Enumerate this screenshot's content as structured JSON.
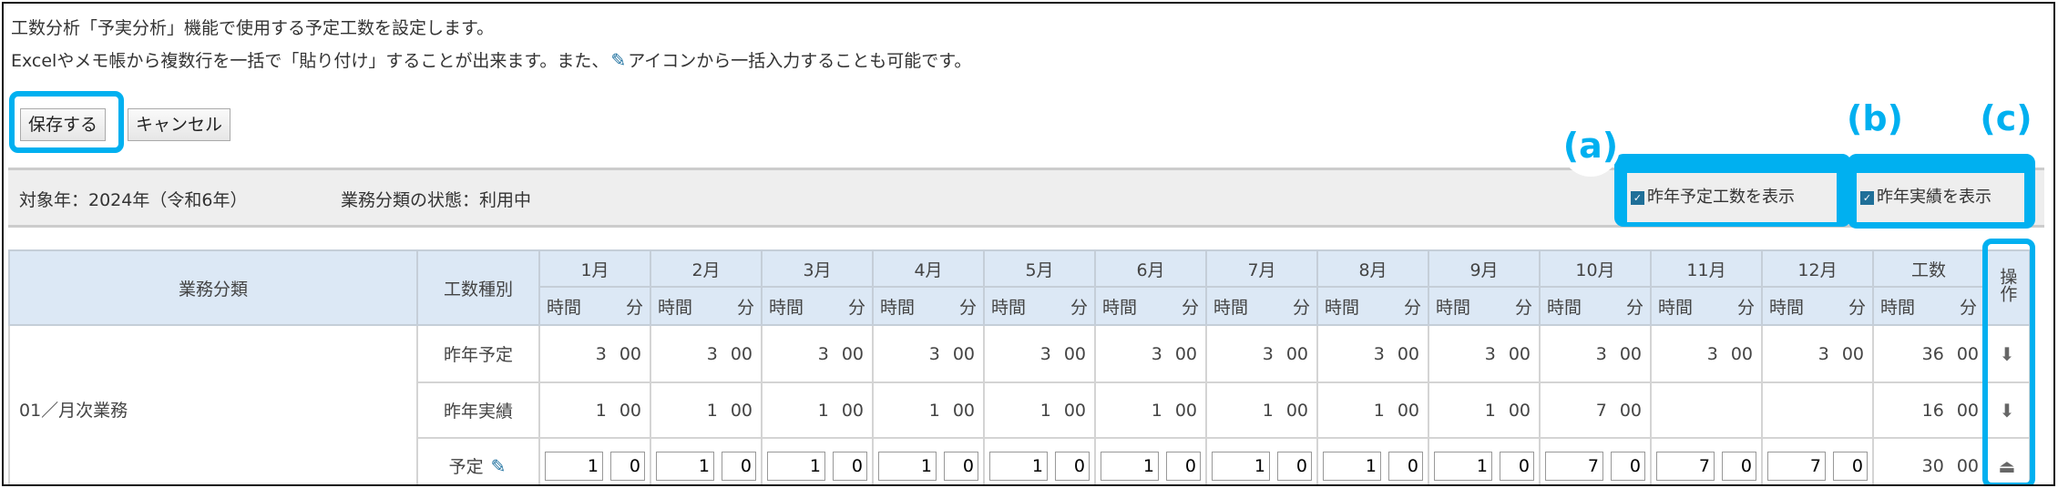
{
  "description": {
    "line1": "工数分析「予実分析」機能で使用する予定工数を設定します。",
    "line2a": "Excelやメモ帳から複数行を一括で「貼り付け」することが出来ます。また、",
    "line2b": "アイコンから一括入力することも可能です。"
  },
  "buttons": {
    "save": "保存する",
    "cancel": "キャンセル"
  },
  "info": {
    "year": "対象年：2024年（令和6年）",
    "status": "業務分類の状態：利用中"
  },
  "options": {
    "show_last_plan": {
      "label": "昨年予定工数を表示",
      "checked": true
    },
    "show_last_actual": {
      "label": "昨年実績を表示",
      "checked": true
    }
  },
  "annotations": {
    "a": "(a)",
    "b": "(b)",
    "c": "(c)"
  },
  "accent_color": "#00b0f0",
  "table": {
    "headers": {
      "category": "業務分類",
      "type": "工数種別",
      "total": "工数",
      "ops": "操作",
      "hour": "時間",
      "minute": "分"
    },
    "months": [
      "1月",
      "2月",
      "3月",
      "4月",
      "5月",
      "6月",
      "7月",
      "8月",
      "9月",
      "10月",
      "11月",
      "12月"
    ],
    "category": "01／月次業務",
    "rows": [
      {
        "type": "昨年予定",
        "kind": "display",
        "hours": [
          "3",
          "3",
          "3",
          "3",
          "3",
          "3",
          "3",
          "3",
          "3",
          "3",
          "3",
          "3"
        ],
        "minutes": [
          "00",
          "00",
          "00",
          "00",
          "00",
          "00",
          "00",
          "00",
          "00",
          "00",
          "00",
          "00"
        ],
        "total_h": "36",
        "total_m": "00",
        "op_icon": "circle-down-icon"
      },
      {
        "type": "昨年実績",
        "kind": "display",
        "hours": [
          "1",
          "1",
          "1",
          "1",
          "1",
          "1",
          "1",
          "1",
          "1",
          "7",
          "",
          ""
        ],
        "minutes": [
          "00",
          "00",
          "00",
          "00",
          "00",
          "00",
          "00",
          "00",
          "00",
          "00",
          "",
          ""
        ],
        "total_h": "16",
        "total_m": "00",
        "op_icon": "circle-down-icon"
      },
      {
        "type": "予定",
        "kind": "input",
        "hours": [
          "1",
          "1",
          "1",
          "1",
          "1",
          "1",
          "1",
          "1",
          "1",
          "7",
          "7",
          "7"
        ],
        "minutes": [
          "0",
          "0",
          "0",
          "0",
          "0",
          "0",
          "0",
          "0",
          "0",
          "0",
          "0",
          "0"
        ],
        "total_h": "30",
        "total_m": "00",
        "op_icon": "eraser-icon"
      }
    ]
  }
}
